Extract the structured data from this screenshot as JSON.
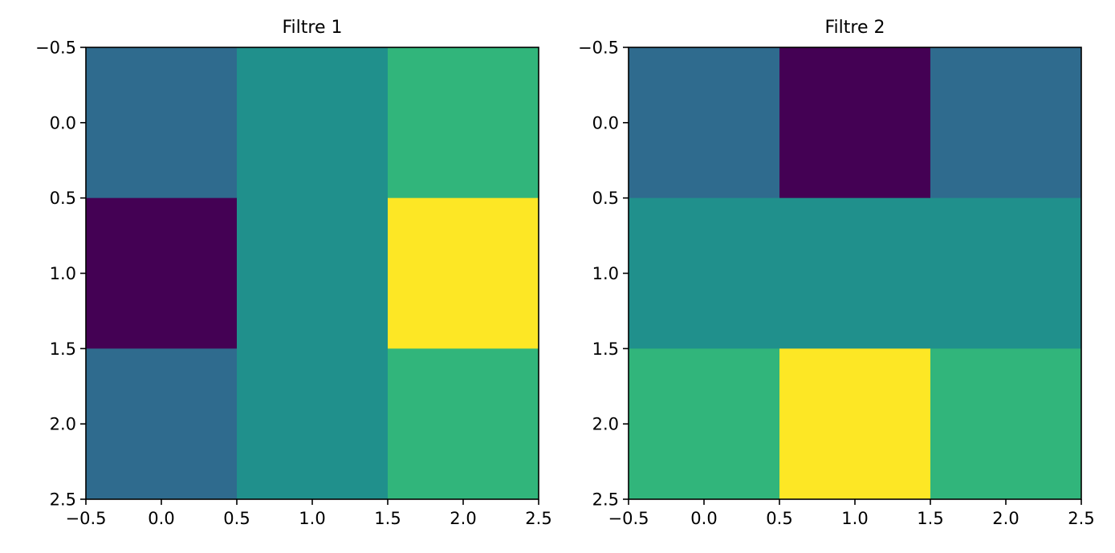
{
  "chart_data": [
    {
      "type": "heatmap",
      "title": "Filtre 1",
      "colormap": "viridis",
      "values": [
        [
          1,
          2,
          3
        ],
        [
          0,
          2,
          4
        ],
        [
          1,
          2,
          3
        ]
      ],
      "vmin": 0,
      "vmax": 4,
      "x_ticks": [
        "−0.5",
        "0.0",
        "0.5",
        "1.0",
        "1.5",
        "2.0",
        "2.5"
      ],
      "y_ticks": [
        "−0.5",
        "0.0",
        "0.5",
        "1.0",
        "1.5",
        "2.0",
        "2.5"
      ],
      "xlim": [
        -0.5,
        2.5
      ],
      "ylim": [
        2.5,
        -0.5
      ],
      "grid": false,
      "colorbar": false
    },
    {
      "type": "heatmap",
      "title": "Filtre 2",
      "colormap": "viridis",
      "values": [
        [
          1,
          0,
          1
        ],
        [
          2,
          2,
          2
        ],
        [
          3,
          4,
          3
        ]
      ],
      "vmin": 0,
      "vmax": 4,
      "x_ticks": [
        "−0.5",
        "0.0",
        "0.5",
        "1.0",
        "1.5",
        "2.0",
        "2.5"
      ],
      "y_ticks": [
        "−0.5",
        "0.0",
        "0.5",
        "1.0",
        "1.5",
        "2.0",
        "2.5"
      ],
      "xlim": [
        -0.5,
        2.5
      ],
      "ylim": [
        2.5,
        -0.5
      ],
      "grid": false,
      "colorbar": false
    }
  ],
  "colors": {
    "viridis_levels": [
      "#440154",
      "#2f6b8e",
      "#20908c",
      "#31b57b",
      "#fde725"
    ],
    "axes": "#000000",
    "background": "#ffffff"
  }
}
